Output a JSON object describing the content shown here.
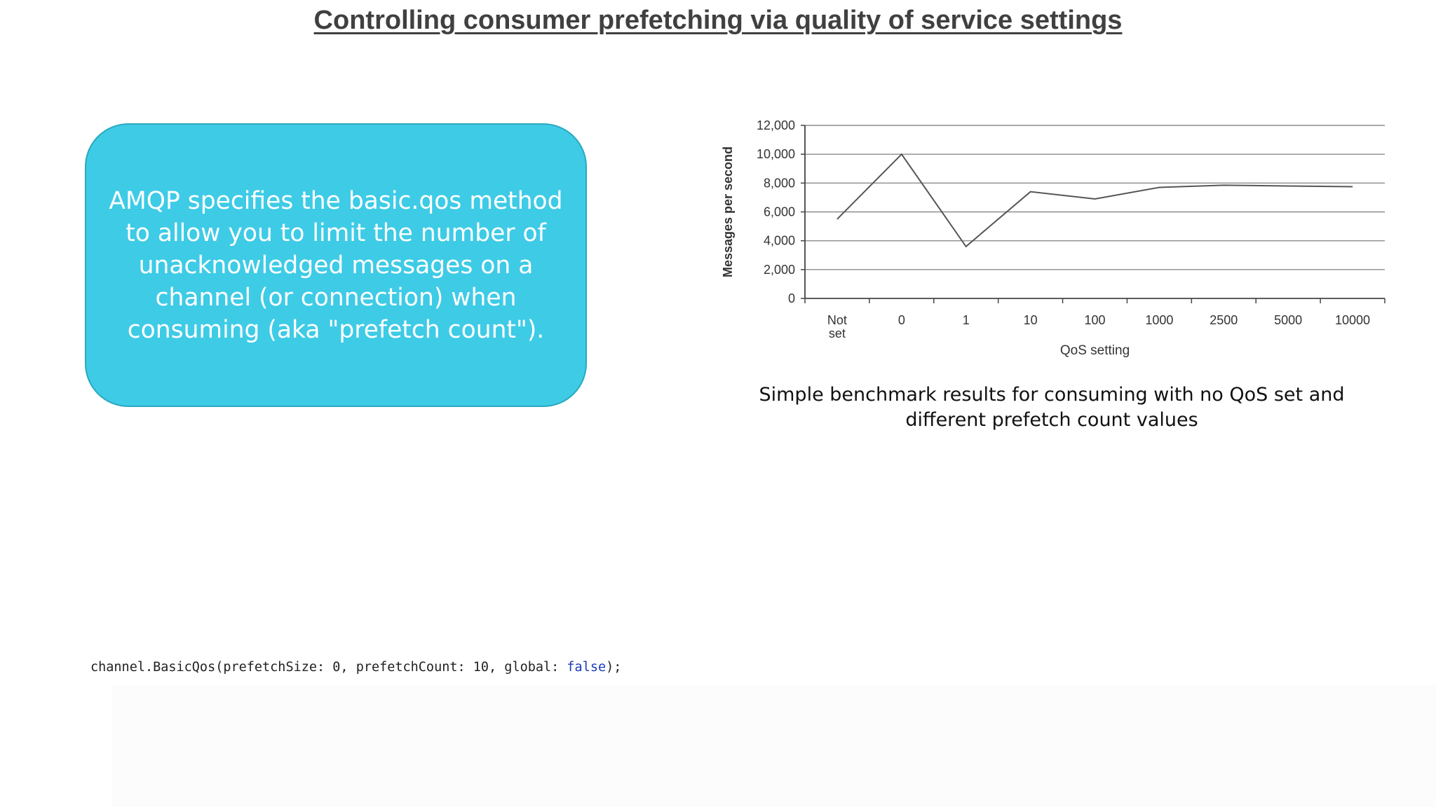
{
  "title": "Controlling consumer prefetching via quality of service settings",
  "callout": {
    "text": "AMQP specifies the basic.qos method\nto allow you to limit the number of\nunacknowledged messages on a\nchannel (or connection) when\nconsuming (aka \"prefetch count\")."
  },
  "caption": "Simple benchmark results for consuming with no QoS set and\ndifferent prefetch count values",
  "code": {
    "prefix": "channel.BasicQos(prefetchSize: 0, prefetchCount: 10, global: ",
    "keyword": "false",
    "suffix": ");"
  },
  "colors": {
    "callout_fill": "#3ecbe6",
    "line": "#555555",
    "keyword": "#1c3bb8"
  },
  "chart_data": {
    "type": "line",
    "title": "",
    "xlabel": "QoS setting",
    "ylabel": "Messages per second",
    "categories": [
      "Not set",
      "0",
      "1",
      "10",
      "100",
      "1000",
      "2500",
      "5000",
      "10000"
    ],
    "category_labels": [
      [
        "Not",
        "set"
      ],
      [
        "0"
      ],
      [
        "1"
      ],
      [
        "10"
      ],
      [
        "100"
      ],
      [
        "1000"
      ],
      [
        "2500"
      ],
      [
        "5000"
      ],
      [
        "10000"
      ]
    ],
    "series": [
      {
        "values": [
          5500,
          10000,
          3600,
          7400,
          6900,
          7700,
          7850,
          7800,
          7750
        ]
      }
    ],
    "ylim": [
      0,
      12000
    ],
    "yticks": [
      0,
      2000,
      4000,
      6000,
      8000,
      10000,
      12000
    ],
    "ytick_labels": [
      "0",
      "2,000",
      "4,000",
      "6,000",
      "8,000",
      "10,000",
      "12,000"
    ],
    "grid": true,
    "legend": "none"
  }
}
